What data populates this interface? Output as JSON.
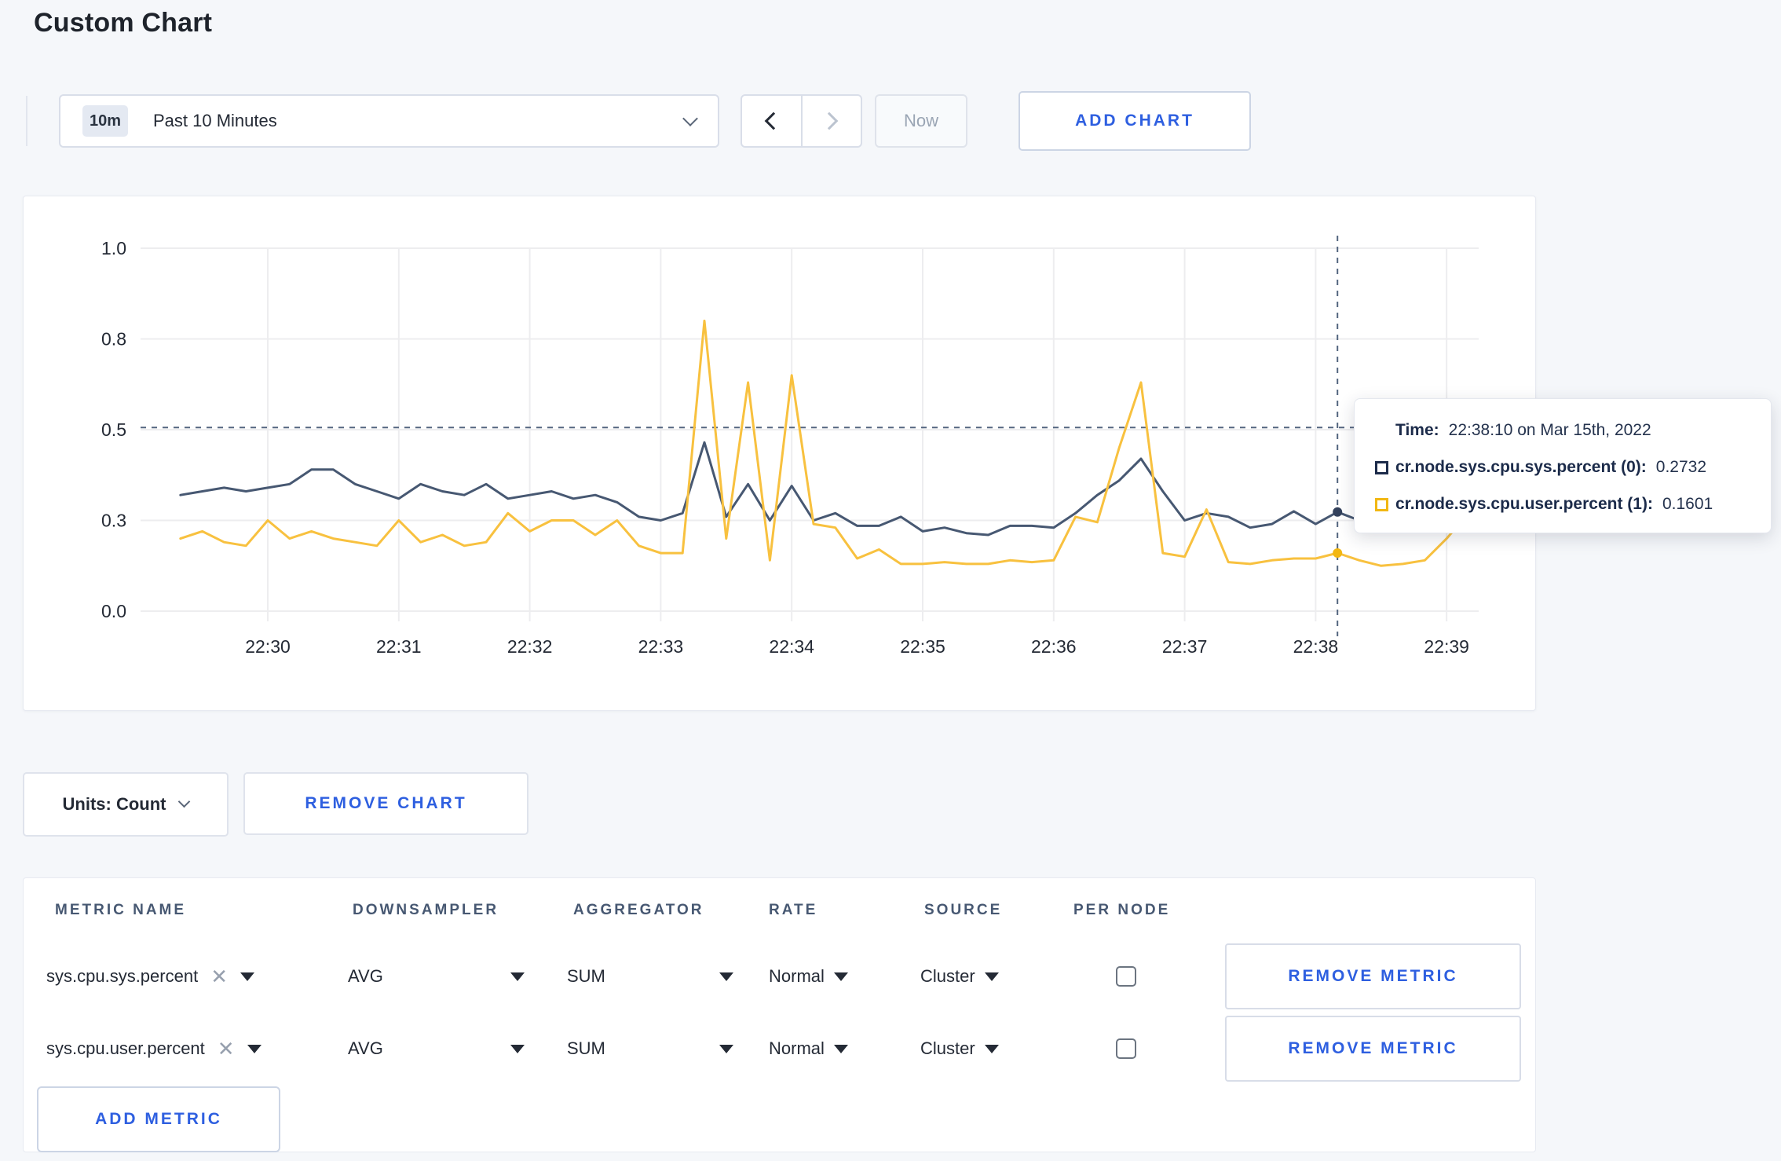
{
  "page": {
    "title": "Custom Chart"
  },
  "toolbar": {
    "time_range": {
      "badge": "10m",
      "label": "Past 10 Minutes"
    },
    "now_label": "Now",
    "add_chart_label": "ADD CHART"
  },
  "chart_data": {
    "type": "line",
    "title": "",
    "xlabel": "",
    "ylabel": "",
    "ylim": [
      0,
      1
    ],
    "grid": true,
    "legend_position": "tooltip",
    "x_tick_labels": [
      "22:30",
      "22:31",
      "22:32",
      "22:33",
      "22:34",
      "22:35",
      "22:36",
      "22:37",
      "22:38",
      "22:39"
    ],
    "y_tick_labels": [
      "0.0",
      "0.3",
      "0.5",
      "0.8",
      "1.0"
    ],
    "y_tick_values": [
      0,
      0.25,
      0.5,
      0.75,
      1.0
    ],
    "x_start_time": "22:29:20",
    "x_step_seconds": 10,
    "series": [
      {
        "name": "cr.node.sys.cpu.sys.percent (0)",
        "color": "#475872",
        "values": [
          0.32,
          0.33,
          0.34,
          0.33,
          0.34,
          0.35,
          0.39,
          0.39,
          0.35,
          0.33,
          0.31,
          0.35,
          0.33,
          0.32,
          0.35,
          0.31,
          0.32,
          0.33,
          0.31,
          0.32,
          0.3,
          0.26,
          0.25,
          0.27,
          0.465,
          0.26,
          0.35,
          0.25,
          0.345,
          0.25,
          0.27,
          0.235,
          0.235,
          0.26,
          0.22,
          0.23,
          0.215,
          0.21,
          0.235,
          0.235,
          0.23,
          0.27,
          0.32,
          0.36,
          0.42,
          0.33,
          0.25,
          0.27,
          0.26,
          0.23,
          0.24,
          0.275,
          0.24,
          0.2732,
          0.25,
          0.26,
          0.26,
          0.27,
          0.28,
          0.28
        ]
      },
      {
        "name": "cr.node.sys.cpu.user.percent (1)",
        "color": "#F8C13F",
        "values": [
          0.2,
          0.22,
          0.19,
          0.18,
          0.25,
          0.2,
          0.22,
          0.2,
          0.19,
          0.18,
          0.25,
          0.19,
          0.21,
          0.18,
          0.19,
          0.27,
          0.22,
          0.25,
          0.25,
          0.21,
          0.25,
          0.18,
          0.16,
          0.16,
          0.8,
          0.2,
          0.63,
          0.14,
          0.65,
          0.24,
          0.23,
          0.145,
          0.17,
          0.13,
          0.13,
          0.135,
          0.13,
          0.13,
          0.14,
          0.135,
          0.14,
          0.26,
          0.245,
          0.45,
          0.63,
          0.16,
          0.15,
          0.28,
          0.135,
          0.13,
          0.14,
          0.145,
          0.145,
          0.1601,
          0.14,
          0.125,
          0.13,
          0.14,
          0.2,
          0.27
        ]
      }
    ],
    "hover": {
      "time": "22:38:10",
      "hover_index": 53,
      "hline_value": 0.506,
      "sys_value": 0.2732,
      "user_value": 0.1601
    }
  },
  "tooltip": {
    "time_label": "Time:",
    "time_value": "22:38:10 on Mar 15th, 2022",
    "rows": [
      {
        "name": "cr.node.sys.cpu.sys.percent (0):",
        "value": "0.2732",
        "swatch_color": "#1C2B4A"
      },
      {
        "name": "cr.node.sys.cpu.user.percent (1):",
        "value": "0.1601",
        "swatch_color": "#F2B713"
      }
    ]
  },
  "chart_footer": {
    "units_label": "Units: Count",
    "remove_chart_label": "REMOVE CHART"
  },
  "metrics_table": {
    "headers": [
      "METRIC NAME",
      "DOWNSAMPLER",
      "AGGREGATOR",
      "RATE",
      "SOURCE",
      "PER NODE"
    ],
    "rows": [
      {
        "metric": "sys.cpu.sys.percent",
        "downsampler": "AVG",
        "aggregator": "SUM",
        "rate": "Normal",
        "source": "Cluster",
        "per_node_checked": false,
        "remove_label": "REMOVE METRIC"
      },
      {
        "metric": "sys.cpu.user.percent",
        "downsampler": "AVG",
        "aggregator": "SUM",
        "rate": "Normal",
        "source": "Cluster",
        "per_node_checked": false,
        "remove_label": "REMOVE METRIC"
      }
    ],
    "add_metric_label": "ADD METRIC"
  }
}
